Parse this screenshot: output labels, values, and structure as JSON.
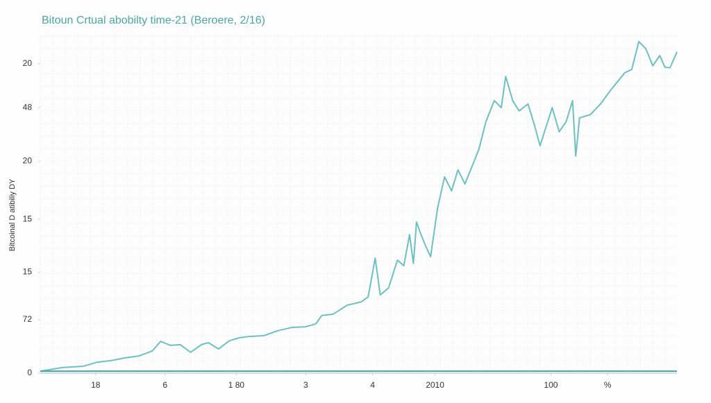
{
  "chart_data": {
    "type": "line",
    "title": "Bitoun Crtual abobilty time-21 (Beroere, 2/16)",
    "y_label": "Bitcoinal D atibiliy DY",
    "xlim": [
      0,
      100
    ],
    "ylim": [
      0,
      100
    ],
    "xticks": [
      {
        "value": 8.7,
        "label": "18"
      },
      {
        "value": 19.6,
        "label": "6"
      },
      {
        "value": 30.8,
        "label": "1 80"
      },
      {
        "value": 41.7,
        "label": "3"
      },
      {
        "value": 52.2,
        "label": "4"
      },
      {
        "value": 62.0,
        "label": "2010"
      },
      {
        "value": 80.2,
        "label": "100"
      },
      {
        "value": 89.1,
        "label": "%"
      }
    ],
    "yticks": [
      0,
      {
        "value": 16.1,
        "label": "72"
      },
      {
        "value": 30.5,
        "label": "15"
      },
      {
        "value": 46.4,
        "label": "15"
      },
      {
        "value": 64.0,
        "label": "20"
      },
      {
        "value": 80.1,
        "label": "48"
      },
      {
        "value": 93.3,
        "label": "20"
      }
    ],
    "grid": true,
    "series": [
      {
        "color": "#6cc0c2",
        "x": [
          0,
          3.5,
          6.8,
          8.9,
          11.1,
          13.3,
          15.5,
          17.6,
          18.9,
          20.4,
          22.0,
          23.6,
          25.3,
          26.4,
          28.0,
          29.7,
          31.3,
          32.9,
          35.1,
          37.3,
          39.5,
          41.7,
          43.3,
          44.2,
          46.0,
          48.2,
          50.4,
          51.5,
          52.6,
          53.4,
          54.7,
          56.1,
          57.1,
          58.0,
          58.6,
          59.1,
          59.7,
          60.4,
          61.3,
          62.4,
          63.5,
          64.6,
          65.6,
          66.7,
          67.8,
          68.9,
          70.0,
          71.3,
          72.4,
          73.1,
          74.2,
          75.2,
          76.6,
          77.6,
          78.5,
          80.4,
          81.5,
          82.6,
          83.6,
          84.1,
          84.7,
          86.4,
          88.0,
          89.6,
          91.8,
          92.9,
          94.0,
          95.1,
          96.2,
          97.3,
          98.1,
          98.9,
          100
        ],
        "values": [
          0.6,
          1.7,
          2.1,
          3.3,
          3.8,
          4.6,
          5.2,
          6.7,
          9.6,
          8.4,
          8.6,
          6.3,
          8.6,
          9.2,
          7.3,
          9.8,
          10.7,
          11.1,
          11.3,
          12.8,
          13.8,
          14.0,
          14.9,
          17.4,
          17.8,
          20.5,
          21.5,
          23.0,
          34.7,
          23.6,
          25.7,
          34.1,
          32.4,
          41.8,
          33.1,
          45.6,
          42.3,
          38.9,
          35.1,
          49.8,
          59.2,
          55.0,
          61.3,
          57.1,
          62.3,
          67.6,
          75.9,
          82.2,
          80.1,
          89.5,
          82.2,
          79.1,
          81.2,
          74.9,
          68.6,
          80.1,
          72.8,
          75.9,
          82.2,
          65.5,
          77.0,
          78.0,
          81.2,
          85.4,
          90.6,
          91.6,
          100,
          97.9,
          92.7,
          95.8,
          92.3,
          92.1,
          96.9
        ]
      },
      {
        "color": "#4f9fa3",
        "x": [
          0,
          100
        ],
        "values": [
          0.6,
          0.6
        ]
      }
    ]
  }
}
